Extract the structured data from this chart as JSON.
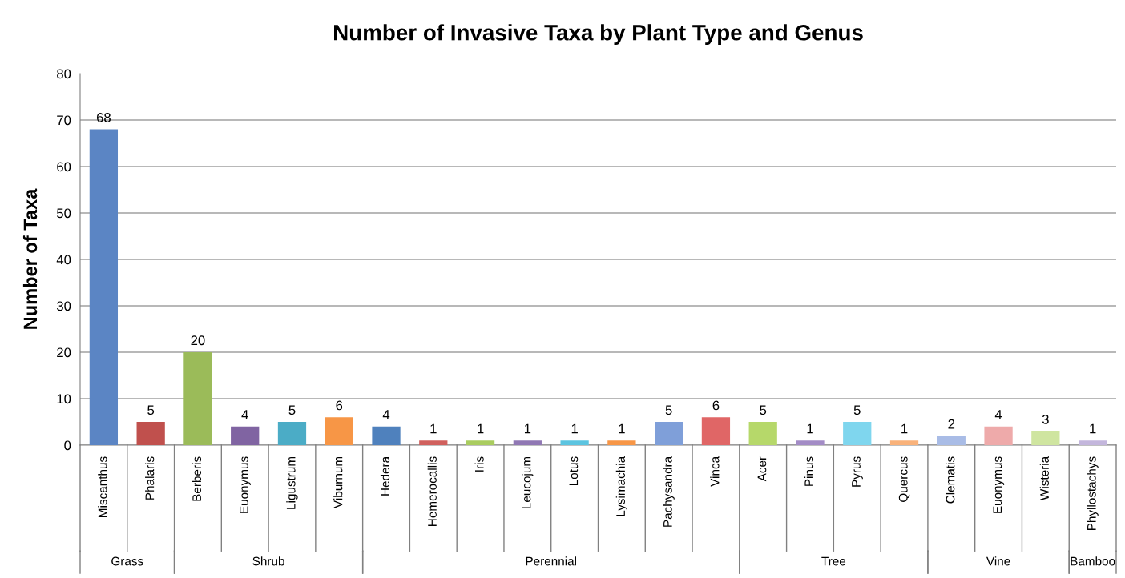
{
  "chart_data": {
    "type": "bar",
    "title": "Number of Invasive Taxa by Plant Type and Genus",
    "ylabel": "Number of Taxa",
    "categories": [
      "Miscanthus",
      "Phalaris",
      "Berberis",
      "Euonymus",
      "Ligustrum",
      "Viburnum",
      "Hedera",
      "Hemerocallis",
      "Iris",
      "Leucojum",
      "Lotus",
      "Lysimachia",
      "Pachysandra",
      "Vinca",
      "Acer",
      "Pinus",
      "Pyrus",
      "Quercus",
      "Clematis",
      "Euonymus",
      "Wisteria",
      "Phyllostachys"
    ],
    "values": [
      68,
      5,
      20,
      4,
      5,
      6,
      4,
      1,
      1,
      1,
      1,
      1,
      5,
      6,
      5,
      1,
      5,
      1,
      2,
      4,
      3,
      1
    ],
    "colors": [
      "#5b85c4",
      "#c0504d",
      "#9bbb59",
      "#8064a2",
      "#4bacc6",
      "#f79646",
      "#4f81bd",
      "#d0605d",
      "#a9cc5f",
      "#9078b4",
      "#5cc4e0",
      "#f79646",
      "#7f9fd9",
      "#e06666",
      "#b6d86a",
      "#a38cc6",
      "#7fd6ee",
      "#f9b27a",
      "#a9bce6",
      "#eeaaaa",
      "#cfe5a0",
      "#c3b6dc"
    ],
    "annotations": [
      "Grass",
      "Shrub",
      "Perennial",
      "Tree",
      "Vine",
      "Bamboo"
    ],
    "ylim": [
      0,
      80
    ],
    "yticks": [
      0,
      10,
      20,
      30,
      40,
      50,
      60,
      70,
      80
    ],
    "grid": "y",
    "data_labels": true
  }
}
